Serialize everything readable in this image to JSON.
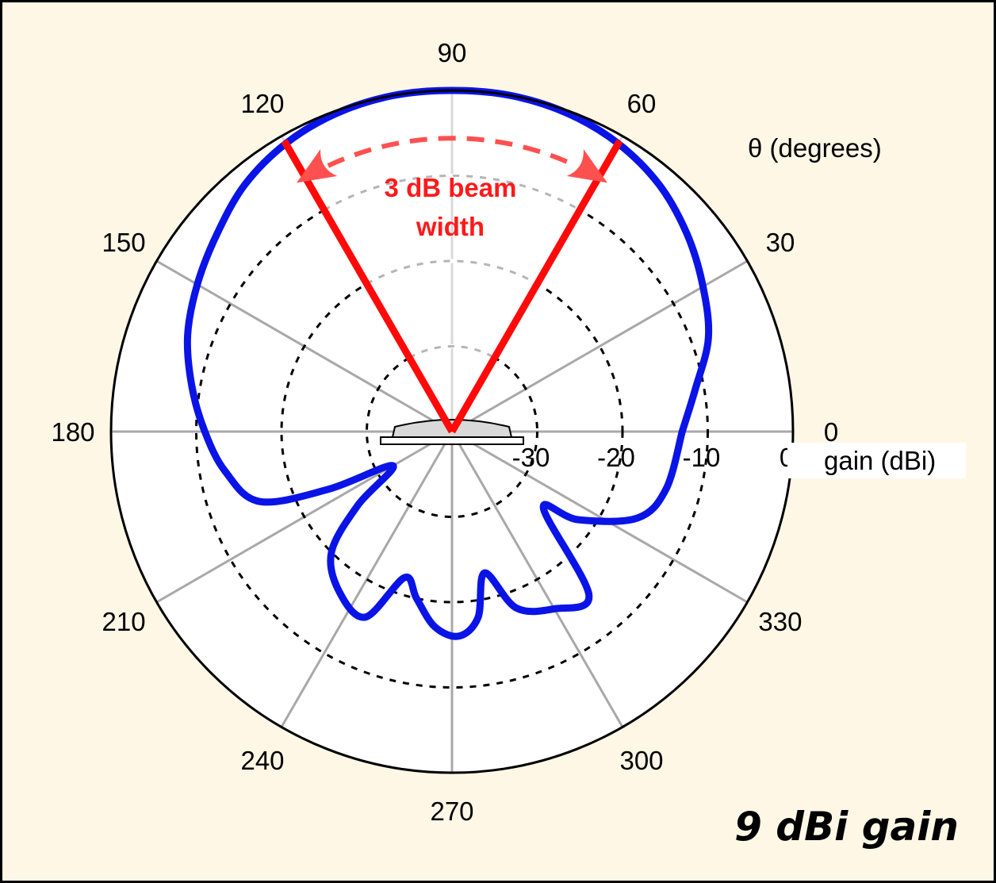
{
  "chart_data": {
    "type": "polar",
    "title": "",
    "angle_axis_label": "θ (degrees)",
    "radial_axis_label": "gain (dBi)",
    "angle_ticks": [
      0,
      30,
      60,
      90,
      120,
      150,
      180,
      210,
      240,
      270,
      300,
      330
    ],
    "radial_ticks": [
      -30,
      -20,
      -10,
      0
    ],
    "radial_range": [
      -40,
      0
    ],
    "grid": true,
    "annotation": {
      "text_line1": "3 dB beam",
      "text_line2": "width",
      "beam_angles": [
        60,
        120
      ]
    },
    "caption": "9 dBi gain",
    "series": [
      {
        "color": "#0a14e6",
        "points": [
          {
            "theta": 0,
            "gain": -13
          },
          {
            "theta": 10,
            "gain": -11
          },
          {
            "theta": 20,
            "gain": -8
          },
          {
            "theta": 30,
            "gain": -6
          },
          {
            "theta": 40,
            "gain": -4
          },
          {
            "theta": 50,
            "gain": -2.2
          },
          {
            "theta": 60,
            "gain": -1
          },
          {
            "theta": 70,
            "gain": -0.3
          },
          {
            "theta": 80,
            "gain": 0
          },
          {
            "theta": 90,
            "gain": 0
          },
          {
            "theta": 100,
            "gain": 0
          },
          {
            "theta": 110,
            "gain": -0.3
          },
          {
            "theta": 120,
            "gain": -1
          },
          {
            "theta": 130,
            "gain": -2.2
          },
          {
            "theta": 140,
            "gain": -4
          },
          {
            "theta": 150,
            "gain": -5.5
          },
          {
            "theta": 160,
            "gain": -7
          },
          {
            "theta": 170,
            "gain": -9
          },
          {
            "theta": 180,
            "gain": -11
          },
          {
            "theta": 190,
            "gain": -13
          },
          {
            "theta": 200,
            "gain": -16
          },
          {
            "theta": 205,
            "gain": -24
          },
          {
            "theta": 210,
            "gain": -32
          },
          {
            "theta": 218,
            "gain": -26
          },
          {
            "theta": 225,
            "gain": -20
          },
          {
            "theta": 235,
            "gain": -17
          },
          {
            "theta": 245,
            "gain": -16
          },
          {
            "theta": 252,
            "gain": -22
          },
          {
            "theta": 258,
            "gain": -20
          },
          {
            "theta": 265,
            "gain": -17
          },
          {
            "theta": 272,
            "gain": -16
          },
          {
            "theta": 278,
            "gain": -18
          },
          {
            "theta": 283,
            "gain": -23
          },
          {
            "theta": 290,
            "gain": -18
          },
          {
            "theta": 300,
            "gain": -16
          },
          {
            "theta": 310,
            "gain": -15
          },
          {
            "theta": 320,
            "gain": -26
          },
          {
            "theta": 325,
            "gain": -22
          },
          {
            "theta": 335,
            "gain": -16
          },
          {
            "theta": 345,
            "gain": -14
          },
          {
            "theta": 360,
            "gain": -13
          }
        ]
      }
    ]
  }
}
